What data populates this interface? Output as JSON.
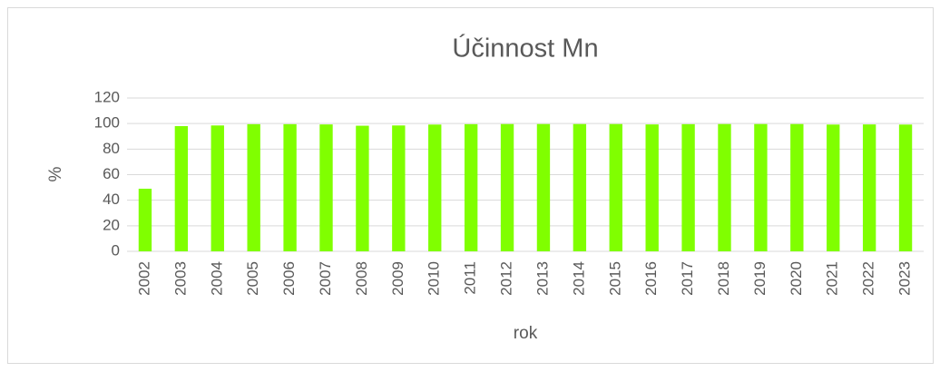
{
  "chart_data": {
    "type": "bar",
    "title": "Účinnost Mn",
    "x_label": "rok",
    "y_label": "%",
    "categories": [
      "2002",
      "2003",
      "2004",
      "2005",
      "2006",
      "2007",
      "2008",
      "2009",
      "2010",
      "2011",
      "2012",
      "2013",
      "2014",
      "2015",
      "2016",
      "2017",
      "2018",
      "2019",
      "2020",
      "2021",
      "2022",
      "2023"
    ],
    "values": [
      49,
      98,
      98.5,
      99.5,
      99.5,
      99.3,
      98.3,
      98.5,
      99.2,
      99.5,
      99.6,
      99.6,
      99.6,
      99.6,
      99.3,
      99.5,
      99.6,
      99.6,
      99.6,
      99.2,
      99.3,
      99.2
    ],
    "color": "#80ff00",
    "ylim": [
      0,
      120
    ],
    "yticks": [
      0,
      20,
      40,
      60,
      80,
      100,
      120
    ],
    "grid": true
  }
}
